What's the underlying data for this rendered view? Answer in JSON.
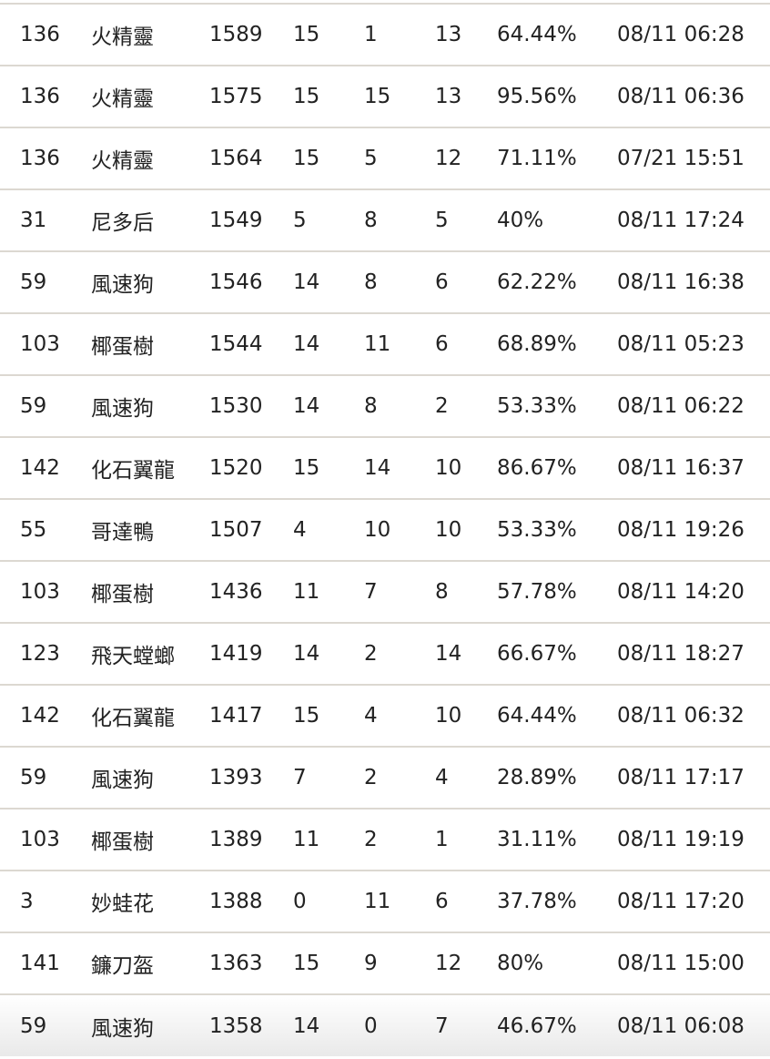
{
  "table": {
    "rows": [
      [
        "136",
        "火精靈",
        "1589",
        "15",
        "1",
        "13",
        "64.44%",
        "08/11 06:28"
      ],
      [
        "136",
        "火精靈",
        "1575",
        "15",
        "15",
        "13",
        "95.56%",
        "08/11 06:36"
      ],
      [
        "136",
        "火精靈",
        "1564",
        "15",
        "5",
        "12",
        "71.11%",
        "07/21 15:51"
      ],
      [
        "31",
        "尼多后",
        "1549",
        "5",
        "8",
        "5",
        "40%",
        "08/11 17:24"
      ],
      [
        "59",
        "風速狗",
        "1546",
        "14",
        "8",
        "6",
        "62.22%",
        "08/11 16:38"
      ],
      [
        "103",
        "椰蛋樹",
        "1544",
        "14",
        "11",
        "6",
        "68.89%",
        "08/11 05:23"
      ],
      [
        "59",
        "風速狗",
        "1530",
        "14",
        "8",
        "2",
        "53.33%",
        "08/11 06:22"
      ],
      [
        "142",
        "化石翼龍",
        "1520",
        "15",
        "14",
        "10",
        "86.67%",
        "08/11 16:37"
      ],
      [
        "55",
        "哥達鴨",
        "1507",
        "4",
        "10",
        "10",
        "53.33%",
        "08/11 19:26"
      ],
      [
        "103",
        "椰蛋樹",
        "1436",
        "11",
        "7",
        "8",
        "57.78%",
        "08/11 14:20"
      ],
      [
        "123",
        "飛天螳螂",
        "1419",
        "14",
        "2",
        "14",
        "66.67%",
        "08/11 18:27"
      ],
      [
        "142",
        "化石翼龍",
        "1417",
        "15",
        "4",
        "10",
        "64.44%",
        "08/11 06:32"
      ],
      [
        "59",
        "風速狗",
        "1393",
        "7",
        "2",
        "4",
        "28.89%",
        "08/11 17:17"
      ],
      [
        "103",
        "椰蛋樹",
        "1389",
        "11",
        "2",
        "1",
        "31.11%",
        "08/11 19:19"
      ],
      [
        "3",
        "妙蛙花",
        "1388",
        "0",
        "11",
        "6",
        "37.78%",
        "08/11 17:20"
      ],
      [
        "141",
        "鐮刀盔",
        "1363",
        "15",
        "9",
        "12",
        "80%",
        "08/11 15:00"
      ],
      [
        "59",
        "風速狗",
        "1358",
        "14",
        "0",
        "7",
        "46.67%",
        "08/11 06:08"
      ]
    ]
  }
}
